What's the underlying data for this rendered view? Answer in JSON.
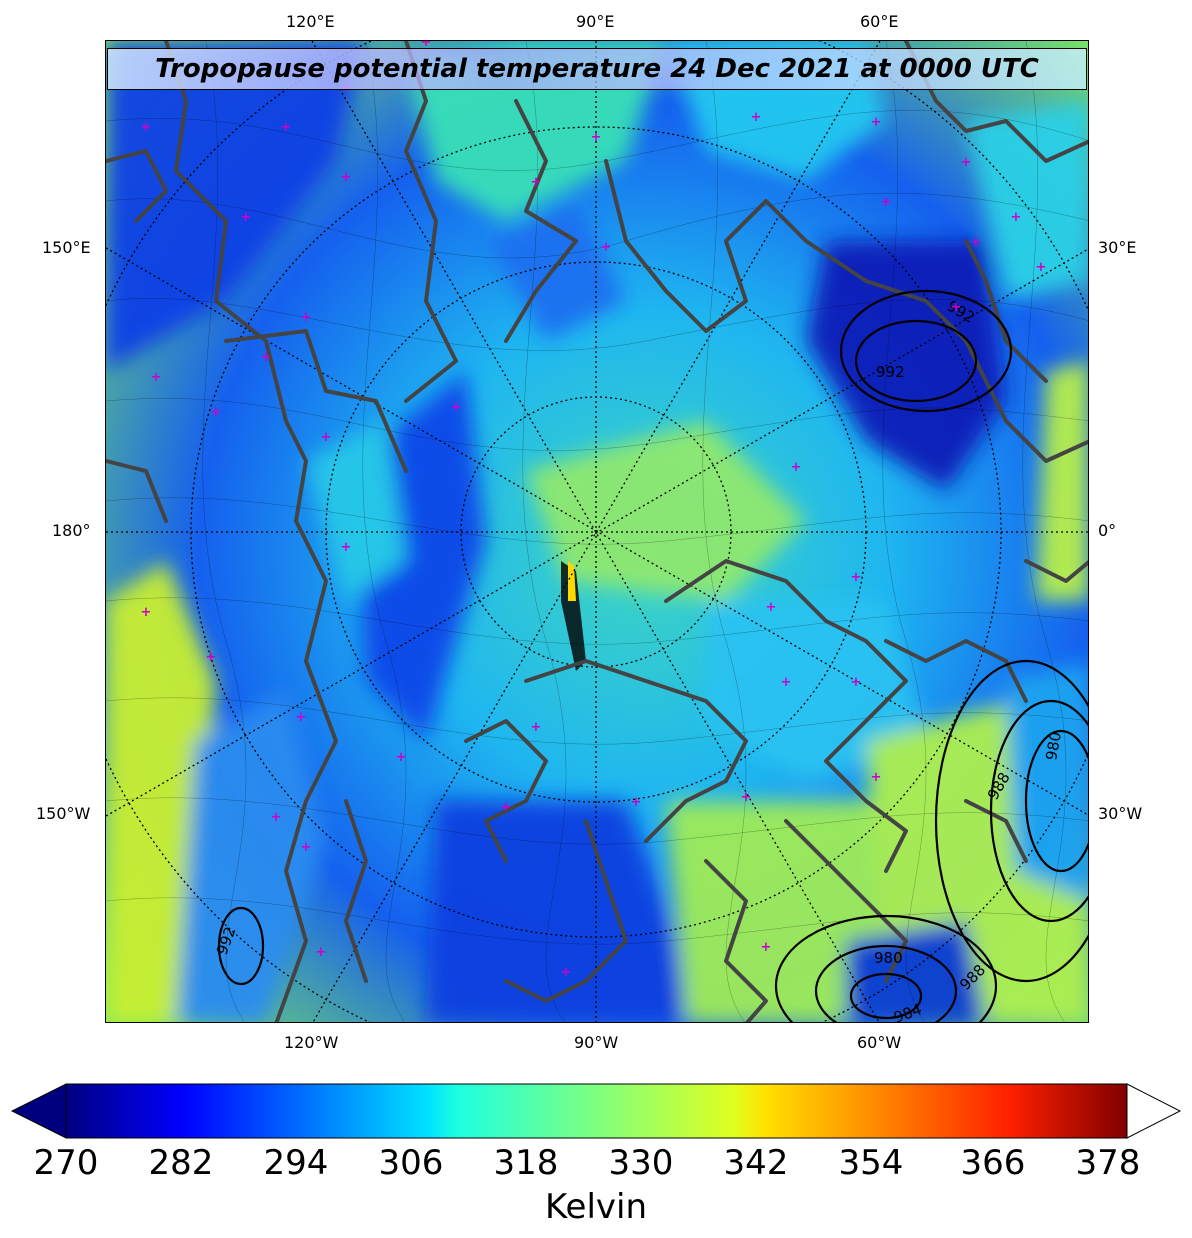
{
  "map": {
    "title": "Tropopause potential temperature 24 Dec 2021 at 0000 UTC",
    "projection": "north-polar-stereographic",
    "top_longitude_labels": [
      "120°E",
      "90°E",
      "60°E"
    ],
    "bottom_longitude_labels": [
      "120°W",
      "90°W",
      "60°W"
    ],
    "left_longitude_labels": [
      "150°E",
      "180°",
      "150°W"
    ],
    "right_longitude_labels": [
      "30°E",
      "0°",
      "30°W"
    ],
    "pressure_contour_labels": [
      "992",
      "992",
      "980",
      "988",
      "980",
      "992",
      "988",
      "984"
    ],
    "colors": {
      "coastline": "#444444",
      "marker": "#cc00cc",
      "contour": "#000000"
    }
  },
  "colorbar": {
    "ticks": [
      "270",
      "282",
      "294",
      "306",
      "318",
      "330",
      "342",
      "354",
      "366",
      "378"
    ],
    "unit": "Kelvin",
    "colormap": "jet",
    "min": 270,
    "max": 381,
    "extend": "both"
  }
}
